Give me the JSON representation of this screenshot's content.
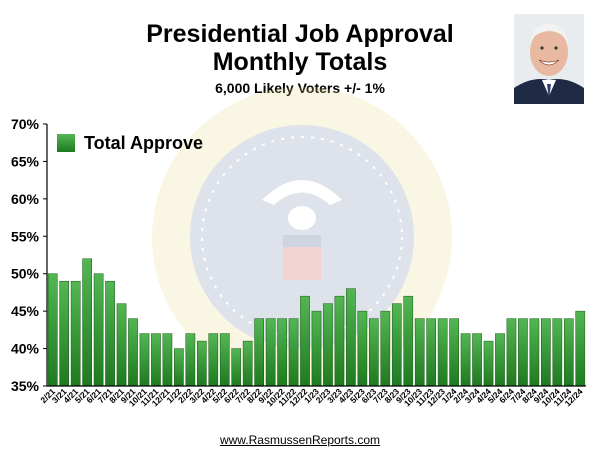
{
  "header": {
    "title_line1": "Presidential Job Approval",
    "title_line2": "Monthly Totals",
    "subtitle": "6,000 Likely Voters +/- 1%"
  },
  "footer": {
    "url": "www.RasmussenReports.com"
  },
  "colors": {
    "bar_top": "#53b653",
    "bar_bottom": "#1e7a1e",
    "bar_stroke": "#135a13",
    "axis": "#000000"
  },
  "chart_data": {
    "type": "bar",
    "title": "Presidential Job Approval Monthly Totals",
    "subtitle": "6,000 Likely Voters +/- 1%",
    "ylim": [
      35,
      70
    ],
    "yticks": [
      "35%",
      "40%",
      "45%",
      "50%",
      "55%",
      "60%",
      "65%",
      "70%"
    ],
    "legend_position": "top-left",
    "grid": false,
    "categories": [
      "2/21",
      "3/21",
      "4/21",
      "5/21",
      "6/21",
      "7/21",
      "8/21",
      "9/21",
      "10/21",
      "11/21",
      "12/21",
      "1/22",
      "2/22",
      "3/22",
      "4/22",
      "5/22",
      "6/22",
      "7/22",
      "8/22",
      "9/22",
      "10/22",
      "11/22",
      "12/22",
      "1/23",
      "2/23",
      "3/23",
      "4/23",
      "5/23",
      "6/23",
      "7/23",
      "8/23",
      "9/23",
      "10/23",
      "11/23",
      "12/23",
      "1/24",
      "2/24",
      "3/24",
      "4/24",
      "5/24",
      "6/24",
      "7/24",
      "8/24",
      "9/24",
      "10/24",
      "11/24",
      "12/24"
    ],
    "series": [
      {
        "name": "Total Approve",
        "values": [
          50,
          49,
          49,
          52,
          50,
          49,
          46,
          44,
          42,
          42,
          42,
          40,
          42,
          41,
          42,
          42,
          40,
          41,
          44,
          44,
          44,
          44,
          47,
          45,
          46,
          47,
          48,
          45,
          44,
          45,
          46,
          47,
          44,
          44,
          44,
          44,
          42,
          42,
          41,
          42,
          44,
          44,
          44,
          44,
          44,
          44,
          45
        ]
      }
    ]
  }
}
